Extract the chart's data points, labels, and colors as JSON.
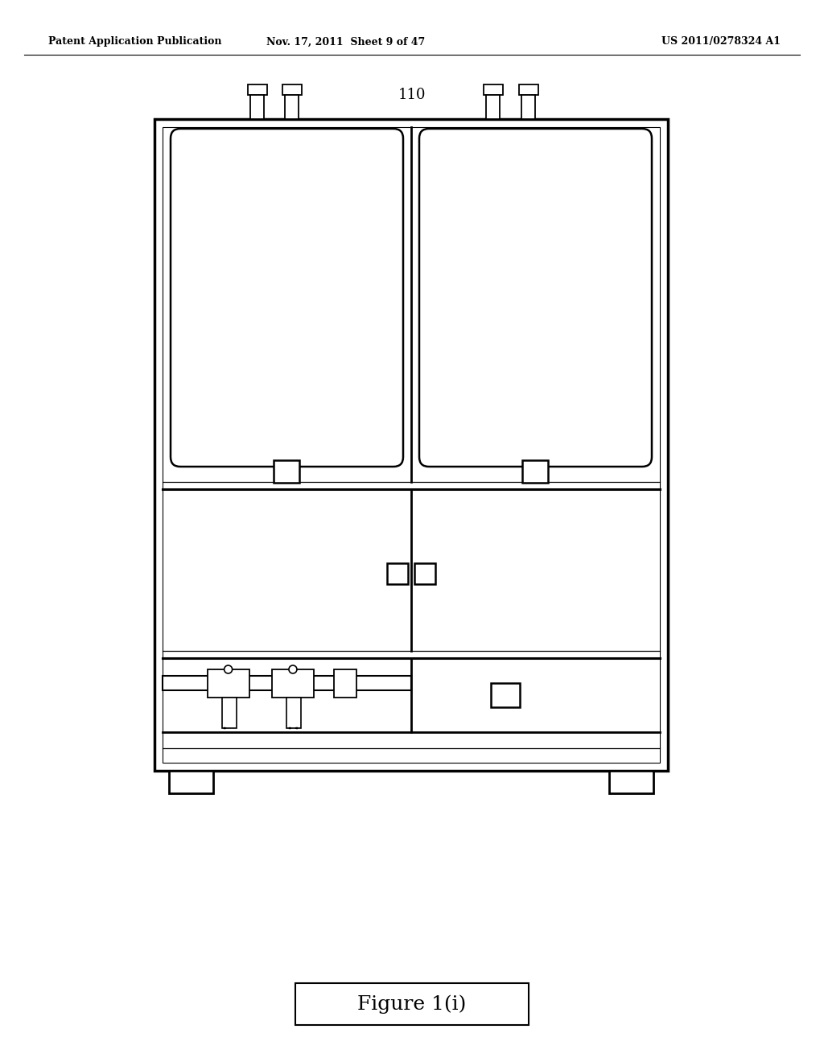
{
  "bg_color": "#ffffff",
  "line_color": "#000000",
  "header_left": "Patent Application Publication",
  "header_mid": "Nov. 17, 2011  Sheet 9 of 47",
  "header_right": "US 2011/0278324 A1",
  "fig_label": "110",
  "figure_caption": "Figure 1(i)"
}
